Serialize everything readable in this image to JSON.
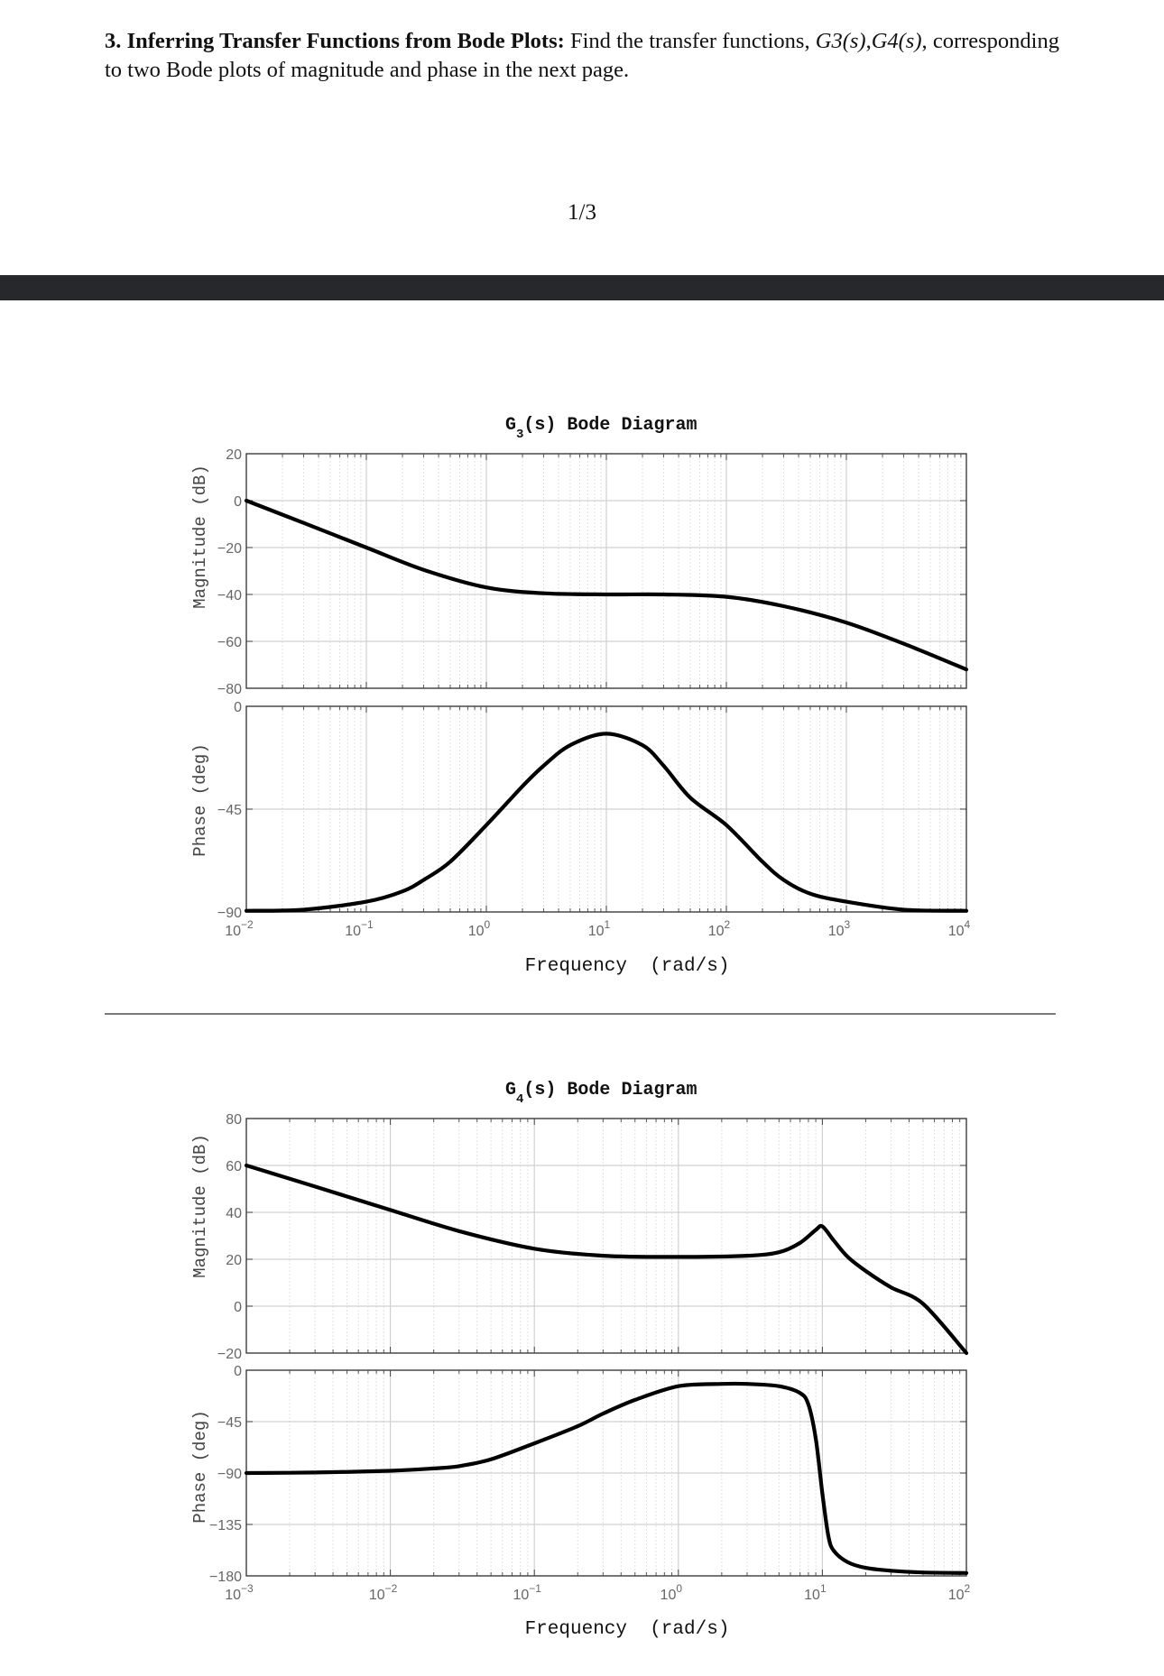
{
  "problem": {
    "number": "3.",
    "heading": "Inferring Transfer Functions from Bode Plots:",
    "text_before": " Find the transfer functions, ",
    "g3": "G3(s)",
    "comma": ",",
    "g4": "G4(s)",
    "text_after": ", corresponding to two Bode plots of magnitude and phase in the next page."
  },
  "page_number": "1/3",
  "chart_data": [
    {
      "type": "line",
      "title": "G3(s) Bode Diagram",
      "title_main": "G",
      "title_sub": "3",
      "title_rest": "(s) Bode Diagram",
      "xlabel": "Frequency  (rad/s)",
      "xscale": "log",
      "xlim": [
        0.01,
        10000
      ],
      "x_ticks": [
        {
          "base": "10",
          "exp": "-2"
        },
        {
          "base": "10",
          "exp": "-1"
        },
        {
          "base": "10",
          "exp": "0"
        },
        {
          "base": "10",
          "exp": "1"
        },
        {
          "base": "10",
          "exp": "2"
        },
        {
          "base": "10",
          "exp": "3"
        },
        {
          "base": "10",
          "exp": "4"
        }
      ],
      "grid": true,
      "magnitude": {
        "ylabel": "Magnitude (dB)",
        "ylim": [
          -80,
          20
        ],
        "yticks": [
          "20",
          "0",
          "-20",
          "-40",
          "-60",
          "-80"
        ],
        "x": [
          0.01,
          0.03,
          0.1,
          0.3,
          1,
          3,
          10,
          30,
          100,
          300,
          1000,
          3000,
          10000
        ],
        "y": [
          0,
          -9.5,
          -20,
          -29.5,
          -37,
          -39.5,
          -40,
          -40,
          -41,
          -45,
          -52,
          -61,
          -72
        ]
      },
      "phase": {
        "ylabel": "Phase (deg)",
        "ylim": [
          -90,
          0
        ],
        "yticks": [
          "0",
          "-45",
          "-90"
        ],
        "x": [
          0.01,
          0.03,
          0.1,
          0.2,
          0.3,
          0.5,
          1,
          2,
          3,
          5,
          10,
          20,
          30,
          50,
          100,
          200,
          300,
          500,
          1000,
          3000,
          10000
        ],
        "y": [
          -89.5,
          -89,
          -85.5,
          -81,
          -76,
          -68,
          -52,
          -35,
          -26,
          -17,
          -12,
          -17,
          -26,
          -40,
          -52,
          -68,
          -76,
          -82,
          -85.5,
          -89,
          -89.5
        ]
      }
    },
    {
      "type": "line",
      "title": "G4(s) Bode Diagram",
      "title_main": "G",
      "title_sub": "4",
      "title_rest": "(s) Bode Diagram",
      "xlabel": "Frequency  (rad/s)",
      "xscale": "log",
      "xlim": [
        0.001,
        100
      ],
      "x_ticks": [
        {
          "base": "10",
          "exp": "-3"
        },
        {
          "base": "10",
          "exp": "-2"
        },
        {
          "base": "10",
          "exp": "-1"
        },
        {
          "base": "10",
          "exp": "0"
        },
        {
          "base": "10",
          "exp": "1"
        },
        {
          "base": "10",
          "exp": "2"
        }
      ],
      "grid": true,
      "magnitude": {
        "ylabel": "Magnitude (dB)",
        "ylim": [
          -20,
          80
        ],
        "yticks": [
          "80",
          "60",
          "40",
          "20",
          "0",
          "-20"
        ],
        "x": [
          0.001,
          0.003,
          0.01,
          0.03,
          0.1,
          0.3,
          1,
          3,
          5,
          7,
          9,
          10,
          12,
          15,
          20,
          30,
          50,
          100
        ],
        "y": [
          60,
          51,
          41,
          32,
          24.5,
          21.5,
          21,
          21.5,
          23,
          27,
          32.5,
          34,
          28,
          21,
          15,
          8,
          1,
          -20
        ]
      },
      "phase": {
        "ylabel": "Phase (deg)",
        "ylim": [
          -180,
          0
        ],
        "yticks": [
          "0",
          "-45",
          "-90",
          "-135",
          "-180"
        ],
        "x": [
          0.001,
          0.003,
          0.01,
          0.02,
          0.03,
          0.05,
          0.1,
          0.2,
          0.3,
          0.5,
          1,
          2,
          3,
          5,
          7,
          8,
          9,
          10,
          11,
          12,
          15,
          20,
          30,
          50,
          100
        ],
        "y": [
          -90,
          -89.5,
          -88,
          -86,
          -84,
          -78,
          -64,
          -49,
          -38,
          -26,
          -14,
          -12,
          -12,
          -14,
          -20,
          -30,
          -60,
          -108,
          -145,
          -158,
          -168,
          -173,
          -175.5,
          -177,
          -177.5
        ]
      }
    }
  ]
}
